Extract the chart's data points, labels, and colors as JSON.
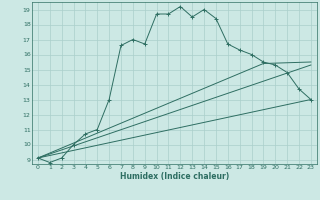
{
  "xlabel": "Humidex (Indice chaleur)",
  "bg_color": "#cce8e4",
  "grid_color": "#aacfcb",
  "line_color": "#2e6e62",
  "xlim": [
    -0.5,
    23.5
  ],
  "ylim": [
    8.7,
    19.5
  ],
  "xticks": [
    0,
    1,
    2,
    3,
    4,
    5,
    6,
    7,
    8,
    9,
    10,
    11,
    12,
    13,
    14,
    15,
    16,
    17,
    18,
    19,
    20,
    21,
    22,
    23
  ],
  "yticks": [
    9,
    10,
    11,
    12,
    13,
    14,
    15,
    16,
    17,
    18,
    19
  ],
  "line1_x": [
    0,
    1,
    2,
    3,
    4,
    5,
    6,
    7,
    8,
    9,
    10,
    11,
    12,
    13,
    14,
    15,
    16,
    17,
    18,
    19,
    20,
    21,
    22,
    23
  ],
  "line1_y": [
    9.1,
    8.8,
    9.1,
    10.0,
    10.7,
    11.0,
    13.0,
    16.6,
    17.0,
    16.7,
    18.7,
    18.7,
    19.2,
    18.5,
    19.0,
    18.4,
    16.7,
    16.3,
    16.0,
    15.5,
    15.3,
    14.8,
    13.7,
    13.0
  ],
  "line2_x": [
    0,
    23
  ],
  "line2_y": [
    9.1,
    13.0
  ],
  "line3_x": [
    0,
    19,
    23
  ],
  "line3_y": [
    9.1,
    15.4,
    15.5
  ],
  "marker": "+"
}
